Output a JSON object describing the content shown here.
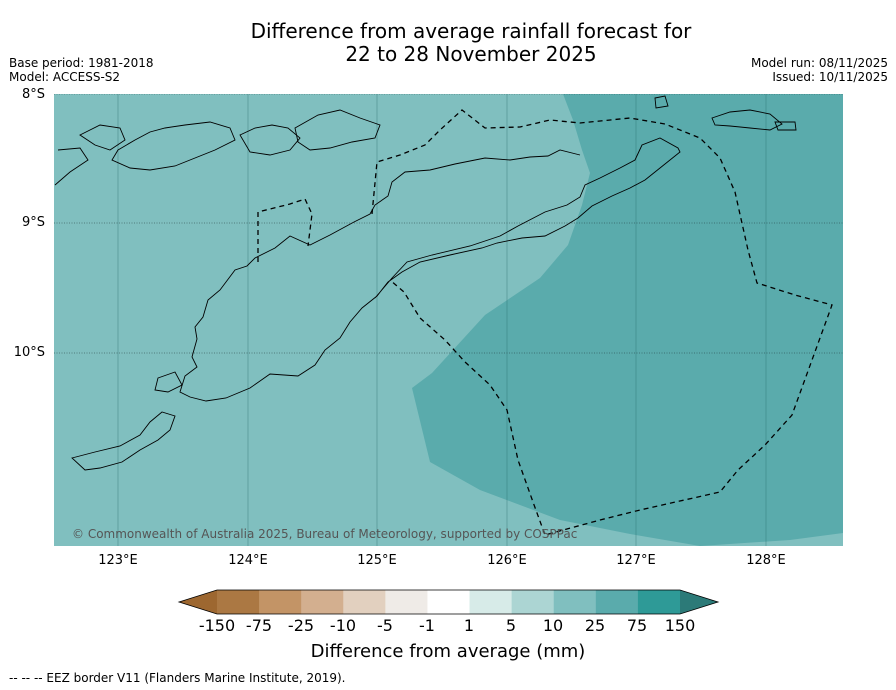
{
  "header": {
    "title_line1": "Difference from average rainfall forecast for",
    "title_line2": "22 to 28 November 2025",
    "base_period": "Base period: 1981-2018",
    "model": "Model: ACCESS-S2",
    "model_run": "Model run: 08/11/2025",
    "issued": "Issued: 10/11/2025"
  },
  "map": {
    "lat_labels": [
      "8°S",
      "9°S",
      "10°S"
    ],
    "lon_labels": [
      "123°E",
      "124°E",
      "125°E",
      "126°E",
      "127°E",
      "128°E"
    ],
    "copyright": "© Commonwealth of Australia 2025, Bureau of Meteorology, supported by COSPPac",
    "fill_colors": {
      "category_10_25": "#80bfbf",
      "category_25_75": "#5aabac"
    }
  },
  "colorbar": {
    "title": "Difference from average (mm)",
    "tick_labels": [
      "-150",
      "-75",
      "-25",
      "-10",
      "-5",
      "-1",
      "1",
      "5",
      "10",
      "25",
      "75",
      "150"
    ],
    "colors": [
      "#9d6730",
      "#ab7843",
      "#c39466",
      "#d3af8f",
      "#e2d0bf",
      "#efebe7",
      "#ffffff",
      "#d7ebe8",
      "#acd5d3",
      "#80bfbf",
      "#5aabac",
      "#2e9a97",
      "#2c7a78"
    ]
  },
  "legend": {
    "eez_note": "--  --  -- EEZ border V11 (Flanders Marine Institute, 2019)."
  }
}
